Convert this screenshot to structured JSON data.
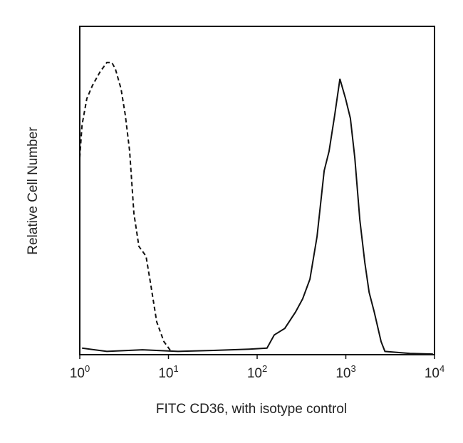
{
  "chart_data": {
    "type": "line",
    "x_label": "FITC CD36, with isotype control",
    "y_label": "Relative Cell Number",
    "xscale": "log",
    "xlim": [
      1,
      10000
    ],
    "ylim": [
      0,
      100
    ],
    "xticks": [
      {
        "value": 1,
        "label": "10",
        "exponent": "0"
      },
      {
        "value": 10,
        "label": "10",
        "exponent": "1"
      },
      {
        "value": 100,
        "label": "10",
        "exponent": "2"
      },
      {
        "value": 1000,
        "label": "10",
        "exponent": "3"
      },
      {
        "value": 10000,
        "label": "10",
        "exponent": "4"
      }
    ],
    "grid": false,
    "series": [
      {
        "color": "#111111",
        "dashed": true,
        "x": [
          1.0,
          1.06,
          1.2,
          1.39,
          1.68,
          2.02,
          2.3,
          2.52,
          2.92,
          3.26,
          3.65,
          4.08,
          4.64,
          5.58,
          6.35,
          7.37,
          8.88,
          10.7
        ],
        "values": [
          60,
          70,
          78,
          82,
          86,
          89,
          89,
          87,
          81,
          73,
          62,
          43,
          33,
          30,
          21,
          10,
          4,
          1
        ]
      },
      {
        "color": "#111111",
        "dashed": false,
        "x": [
          1.06,
          2.02,
          5.09,
          12.8,
          32.3,
          81.5,
          129,
          156,
          205,
          271,
          326,
          394,
          474,
          570,
          648,
          750,
          857,
          993,
          1125,
          1263,
          1440,
          1640,
          1830,
          2090,
          2500,
          2760,
          5270,
          9600
        ],
        "values": [
          2,
          1,
          1.5,
          1,
          1.3,
          1.7,
          2,
          6,
          8,
          13,
          17,
          23,
          36,
          56,
          62,
          73,
          84,
          78,
          72,
          60,
          41,
          28,
          19,
          13,
          4,
          1,
          0.4,
          0.2
        ]
      }
    ]
  }
}
